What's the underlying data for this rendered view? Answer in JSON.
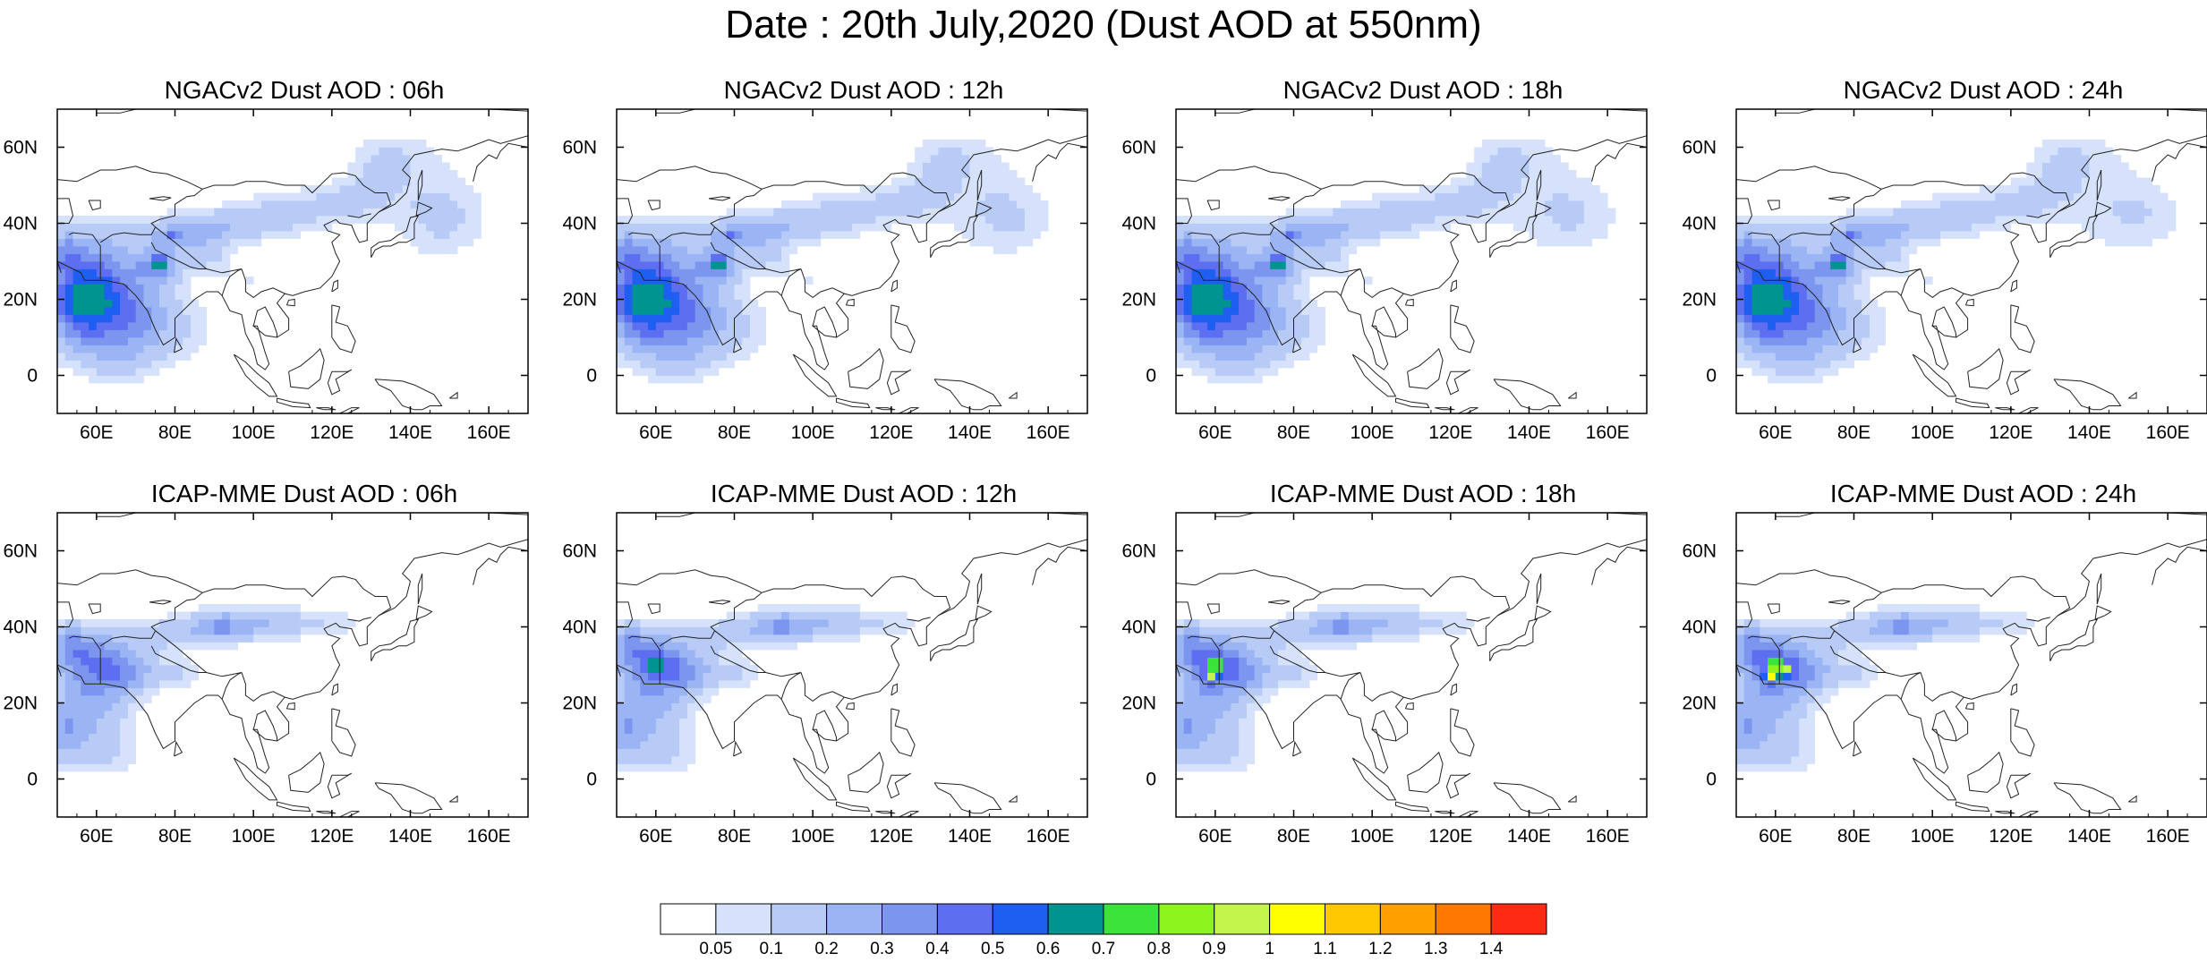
{
  "title": "Date : 20th July,2020 (Dust AOD at 550nm)",
  "map_axes": {
    "lon_range": [
      50,
      170
    ],
    "lat_range": [
      -10,
      70
    ],
    "lon_ticks": [
      "60E",
      "80E",
      "100E",
      "120E",
      "140E",
      "160E"
    ],
    "lon_tick_values": [
      60,
      80,
      100,
      120,
      140,
      160
    ],
    "lat_ticks": [
      "0",
      "20N",
      "40N",
      "60N"
    ],
    "lat_tick_values": [
      0,
      20,
      40,
      60
    ]
  },
  "panels": [
    {
      "title": "NGACv2 Dust AOD : 06h",
      "model": "ngac",
      "hour": 6
    },
    {
      "title": "NGACv2 Dust AOD : 12h",
      "model": "ngac",
      "hour": 12
    },
    {
      "title": "NGACv2 Dust AOD : 18h",
      "model": "ngac",
      "hour": 18
    },
    {
      "title": "NGACv2 Dust AOD : 24h",
      "model": "ngac",
      "hour": 24
    },
    {
      "title": "ICAP-MME Dust AOD : 06h",
      "model": "icap",
      "hour": 6
    },
    {
      "title": "ICAP-MME Dust AOD : 12h",
      "model": "icap",
      "hour": 12
    },
    {
      "title": "ICAP-MME Dust AOD : 18h",
      "model": "icap",
      "hour": 18
    },
    {
      "title": "ICAP-MME Dust AOD : 24h",
      "model": "icap",
      "hour": 24
    }
  ],
  "colorbar": {
    "labels": [
      "0.05",
      "0.1",
      "0.2",
      "0.3",
      "0.4",
      "0.5",
      "0.6",
      "0.7",
      "0.8",
      "0.9",
      "1",
      "1.1",
      "1.2",
      "1.3",
      "1.4"
    ],
    "colors": [
      "#ffffff",
      "#d6e2fb",
      "#b8cbf7",
      "#9ab4f4",
      "#7c96f0",
      "#5e6ef0",
      "#1e5ff2",
      "#009490",
      "#3be33b",
      "#8df51d",
      "#c3f54d",
      "#ffff00",
      "#ffc800",
      "#ffa000",
      "#ff7800",
      "#ff2a14"
    ]
  }
}
